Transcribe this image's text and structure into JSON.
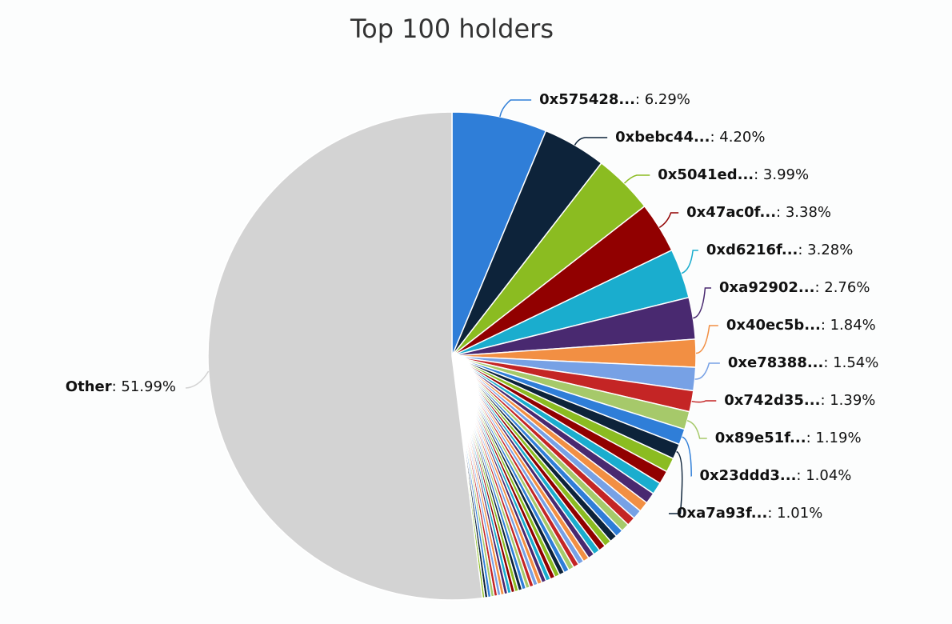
{
  "chart_data": {
    "type": "pie",
    "title": "Top 100 holders",
    "categories": [
      "0x575428...",
      "0xbebc44...",
      "0x5041ed...",
      "0x47ac0f...",
      "0xd6216f...",
      "0xa92902...",
      "0x40ec5b...",
      "0xe78388...",
      "0x742d35...",
      "0x89e51f...",
      "0x23ddd3...",
      "0xa7a93f...",
      null,
      null,
      null,
      null,
      null,
      null,
      null,
      null,
      null,
      null,
      null,
      null,
      null,
      null,
      null,
      null,
      null,
      null,
      null,
      null,
      null,
      null,
      null,
      null,
      null,
      null,
      null,
      null,
      null,
      null,
      null,
      null,
      null,
      null,
      null,
      null,
      null,
      null,
      null,
      null,
      null,
      "Other"
    ],
    "values": [
      6.29,
      4.2,
      3.99,
      3.38,
      3.28,
      2.76,
      1.84,
      1.54,
      1.39,
      1.19,
      1.04,
      1.01,
      0.95,
      0.88,
      0.8,
      0.74,
      0.68,
      0.62,
      0.58,
      0.55,
      0.52,
      0.5,
      0.48,
      0.46,
      0.44,
      0.42,
      0.4,
      0.38,
      0.37,
      0.36,
      0.35,
      0.34,
      0.33,
      0.32,
      0.31,
      0.3,
      0.29,
      0.28,
      0.27,
      0.26,
      0.26,
      0.25,
      0.25,
      0.24,
      0.24,
      0.23,
      0.23,
      0.22,
      0.22,
      0.21,
      0.21,
      0.2,
      0.16,
      51.99
    ],
    "value_labels": [
      ": 6.29%",
      ": 4.20%",
      ": 3.99%",
      ": 3.38%",
      ": 3.28%",
      ": 2.76%",
      ": 1.84%",
      ": 1.54%",
      ": 1.39%",
      ": 1.19%",
      ": 1.04%",
      ": 1.01%",
      null,
      null,
      null,
      null,
      null,
      null,
      null,
      null,
      null,
      null,
      null,
      null,
      null,
      null,
      null,
      null,
      null,
      null,
      null,
      null,
      null,
      null,
      null,
      null,
      null,
      null,
      null,
      null,
      null,
      null,
      null,
      null,
      null,
      null,
      null,
      null,
      null,
      null,
      null,
      null,
      null,
      ": 51.99%"
    ],
    "colors": [
      "#2f7ed8",
      "#0d233a",
      "#8bbc21",
      "#910000",
      "#1aadce",
      "#492970",
      "#f28f43",
      "#77a1e5",
      "#c42525",
      "#a6c96a",
      "#2f7ed8",
      "#0d233a",
      "#8bbc21",
      "#910000",
      "#1aadce",
      "#492970",
      "#f28f43",
      "#77a1e5",
      "#c42525",
      "#a6c96a",
      "#2f7ed8",
      "#0d233a",
      "#8bbc21",
      "#910000",
      "#1aadce",
      "#492970",
      "#f28f43",
      "#77a1e5",
      "#c42525",
      "#a6c96a",
      "#2f7ed8",
      "#0d233a",
      "#8bbc21",
      "#910000",
      "#1aadce",
      "#492970",
      "#f28f43",
      "#77a1e5",
      "#c42525",
      "#a6c96a",
      "#2f7ed8",
      "#0d233a",
      "#8bbc21",
      "#910000",
      "#1aadce",
      "#492970",
      "#f28f43",
      "#77a1e5",
      "#c42525",
      "#a6c96a",
      "#2f7ed8",
      "#0d233a",
      "#8bbc21",
      "#d3d3d3"
    ]
  }
}
